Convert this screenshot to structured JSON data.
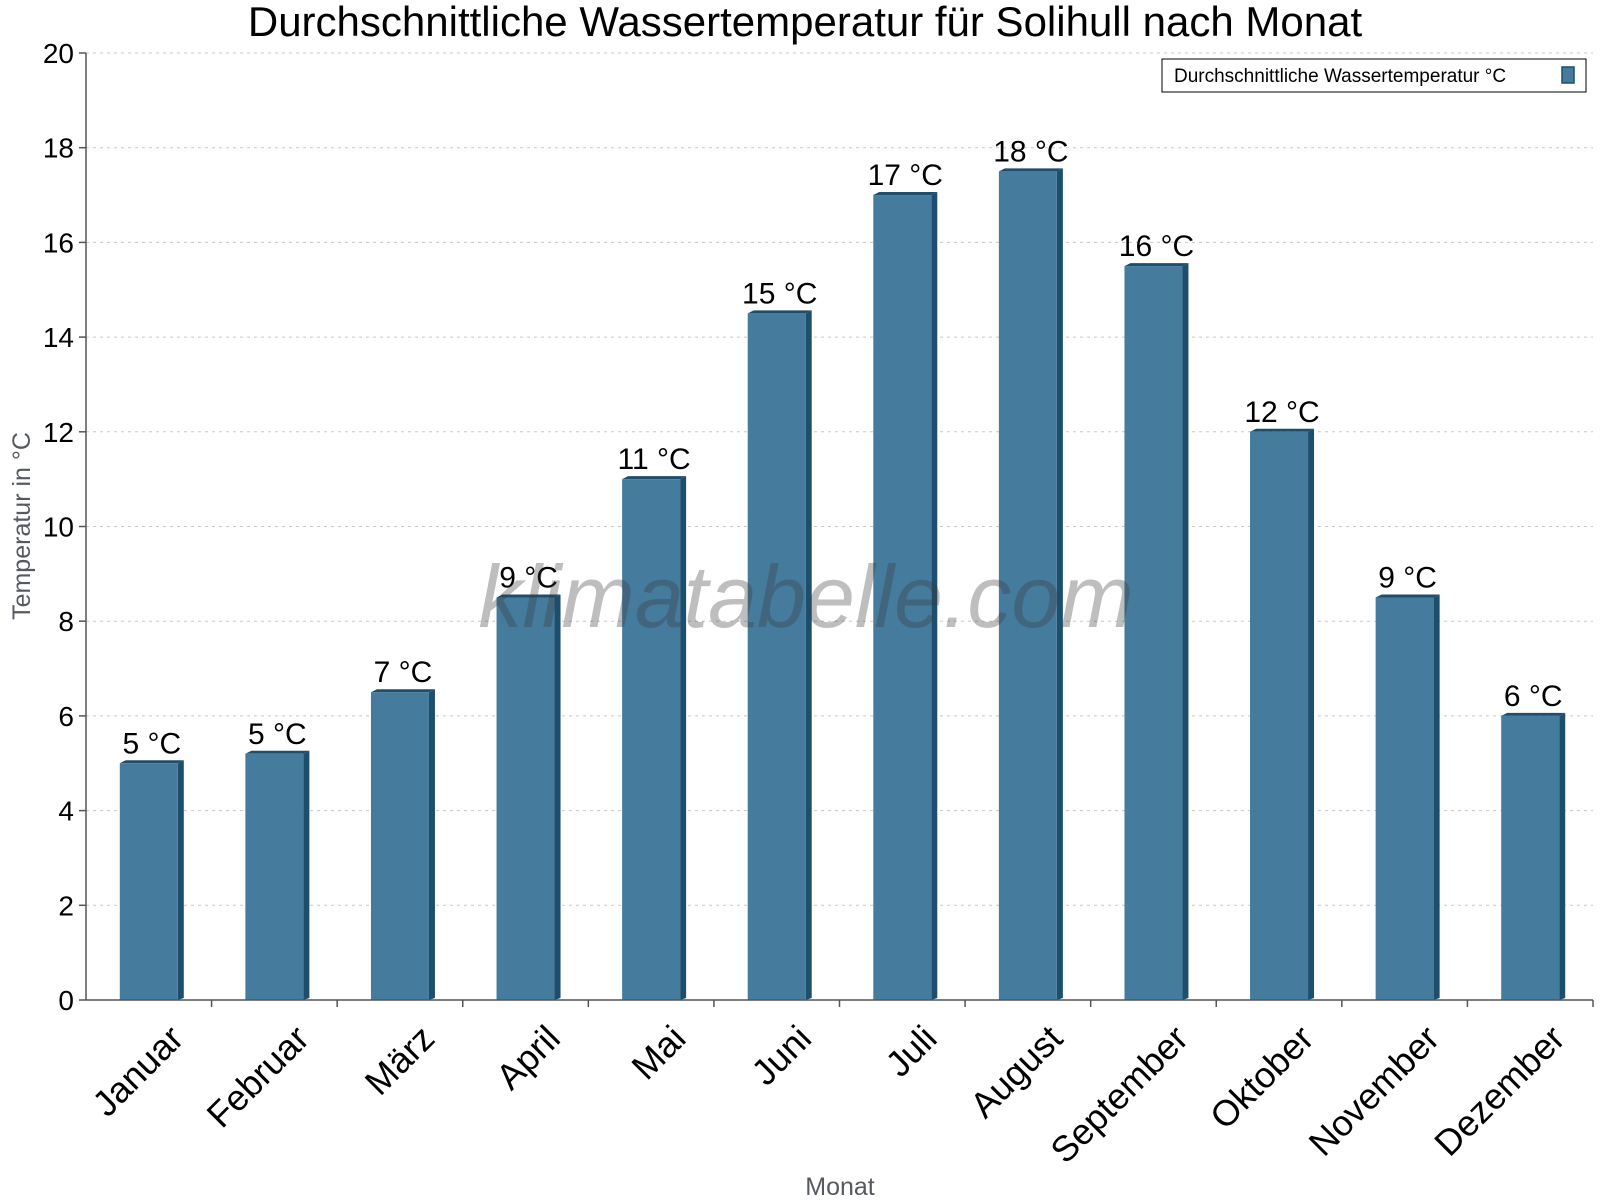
{
  "chart_data": {
    "type": "bar",
    "title": "Durchschnittliche Wassertemperatur für Solihull nach Monat",
    "xlabel": "Monat",
    "ylabel": "Temperatur in °C",
    "categories": [
      "Januar",
      "Februar",
      "März",
      "April",
      "Mai",
      "Juni",
      "Juli",
      "August",
      "September",
      "Oktober",
      "November",
      "Dezember"
    ],
    "series": [
      {
        "name": "Durchschnittliche Wassertemperatur °C",
        "values": [
          5.0,
          5.2,
          6.5,
          8.5,
          11.0,
          14.5,
          17.0,
          17.5,
          15.5,
          12.0,
          8.5,
          6.0
        ],
        "data_labels": [
          "5 °C",
          "5 °C",
          "7 °C",
          "9 °C",
          "11 °C",
          "15 °C",
          "17 °C",
          "18 °C",
          "16 °C",
          "12 °C",
          "9 °C",
          "6 °C"
        ]
      }
    ],
    "ylim": [
      0,
      20
    ],
    "yticks": [
      0,
      2,
      4,
      6,
      8,
      10,
      12,
      14,
      16,
      18,
      20
    ],
    "grid": true,
    "legend_position": "top-right",
    "colors": {
      "bar": "#457b9d",
      "bar_side": "#1d4e6e",
      "bar_top": "#1d4e6e",
      "grid": "#c8c8c8",
      "axis": "#555555"
    },
    "watermark": "klimatabelle.com"
  }
}
